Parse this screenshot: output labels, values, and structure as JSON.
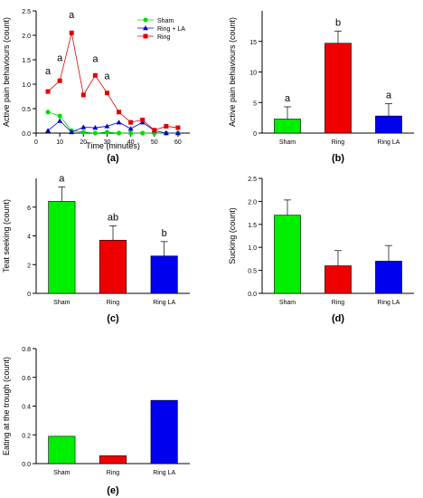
{
  "chart_data": [
    {
      "panel": "(a)",
      "type": "line",
      "xlabel": "Time (minutes)",
      "ylabel": "Active pain behaviours (count)",
      "xlim": [
        0,
        65
      ],
      "ylim": [
        0,
        2.5
      ],
      "xticks": [
        "0",
        "10",
        "20",
        "30",
        "40",
        "50",
        "60"
      ],
      "yticks": [
        "0.0",
        "0.5",
        "1.0",
        "1.5",
        "2.0",
        "2.5"
      ],
      "legend_position": "top-right",
      "grid": false,
      "series": [
        {
          "name": "Sham",
          "color": "#00dd00",
          "marker": "circle",
          "x": [
            5,
            10,
            15,
            20,
            25,
            30,
            35,
            40,
            45,
            50,
            55,
            60
          ],
          "y": [
            0.43,
            0.35,
            0.05,
            0.02,
            0.0,
            0.02,
            0.0,
            0.0,
            0.0,
            0.0,
            0.0,
            0.0
          ]
        },
        {
          "name": "Ring + LA",
          "color": "#0000cc",
          "marker": "triangle",
          "x": [
            5,
            10,
            15,
            20,
            25,
            30,
            35,
            40,
            45,
            50,
            55,
            60
          ],
          "y": [
            0.05,
            0.25,
            0.02,
            0.12,
            0.11,
            0.14,
            0.22,
            0.09,
            0.22,
            0.05,
            0.0,
            0.0
          ]
        },
        {
          "name": "Ring",
          "color": "#e00000",
          "marker": "square",
          "x": [
            5,
            10,
            15,
            20,
            25,
            30,
            35,
            40,
            45,
            50,
            55,
            60
          ],
          "y": [
            0.85,
            1.07,
            2.05,
            0.78,
            1.18,
            0.82,
            0.43,
            0.22,
            0.27,
            0.06,
            0.14,
            0.11
          ]
        }
      ],
      "annotations": [
        {
          "text": "a",
          "x": 5,
          "y": 1.2
        },
        {
          "text": "a",
          "x": 10,
          "y": 1.47
        },
        {
          "text": "a",
          "x": 15,
          "y": 2.35
        },
        {
          "text": "a",
          "x": 25,
          "y": 1.45
        },
        {
          "text": "a",
          "x": 30,
          "y": 1.1
        }
      ]
    },
    {
      "panel": "(b)",
      "type": "bar",
      "ylabel": "Active pain behaviours (count)",
      "categories": [
        "Sham",
        "Ring",
        "Ring LA"
      ],
      "values": [
        2.3,
        14.7,
        2.8
      ],
      "errors": [
        2.0,
        2.0,
        2.0
      ],
      "colors": [
        "#00ee00",
        "#ee0000",
        "#0000ee"
      ],
      "letters": [
        "a",
        "b",
        "a"
      ],
      "ylim": [
        0,
        20
      ],
      "yticks": [
        "0",
        "5",
        "10",
        "15"
      ]
    },
    {
      "panel": "(c)",
      "type": "bar",
      "ylabel": "Teat seeking (count)",
      "categories": [
        "Sham",
        "Ring",
        "Ring LA"
      ],
      "values": [
        6.4,
        3.7,
        2.6
      ],
      "errors": [
        1.0,
        1.0,
        1.0
      ],
      "colors": [
        "#00ee00",
        "#ee0000",
        "#0000ee"
      ],
      "letters": [
        "a",
        "ab",
        "b"
      ],
      "ylim": [
        0,
        8
      ],
      "yticks": [
        "0",
        "2",
        "4",
        "6"
      ]
    },
    {
      "panel": "(d)",
      "type": "bar",
      "ylabel": "Sucking (count)",
      "categories": [
        "Sham",
        "Ring",
        "Ring LA"
      ],
      "values": [
        1.7,
        0.6,
        0.7
      ],
      "errors": [
        0.33,
        0.33,
        0.34
      ],
      "colors": [
        "#00ee00",
        "#ee0000",
        "#0000ee"
      ],
      "letters": [
        "",
        "",
        ""
      ],
      "ylim": [
        0,
        2.5
      ],
      "yticks": [
        "0.0",
        "0.5",
        "1.0",
        "1.5",
        "2.0",
        "2.5"
      ]
    },
    {
      "panel": "(e)",
      "type": "bar",
      "ylabel": "Eating at the trough (count)",
      "categories": [
        "Sham",
        "Ring",
        "Ring LA"
      ],
      "values": [
        0.19,
        0.055,
        0.44
      ],
      "errors": [
        0,
        0,
        0
      ],
      "colors": [
        "#00ee00",
        "#ee0000",
        "#0000ee"
      ],
      "letters": [
        "",
        "",
        ""
      ],
      "ylim": [
        0,
        0.8
      ],
      "yticks": [
        "0.0",
        "0.2",
        "0.4",
        "0.6",
        "0.8"
      ]
    }
  ]
}
